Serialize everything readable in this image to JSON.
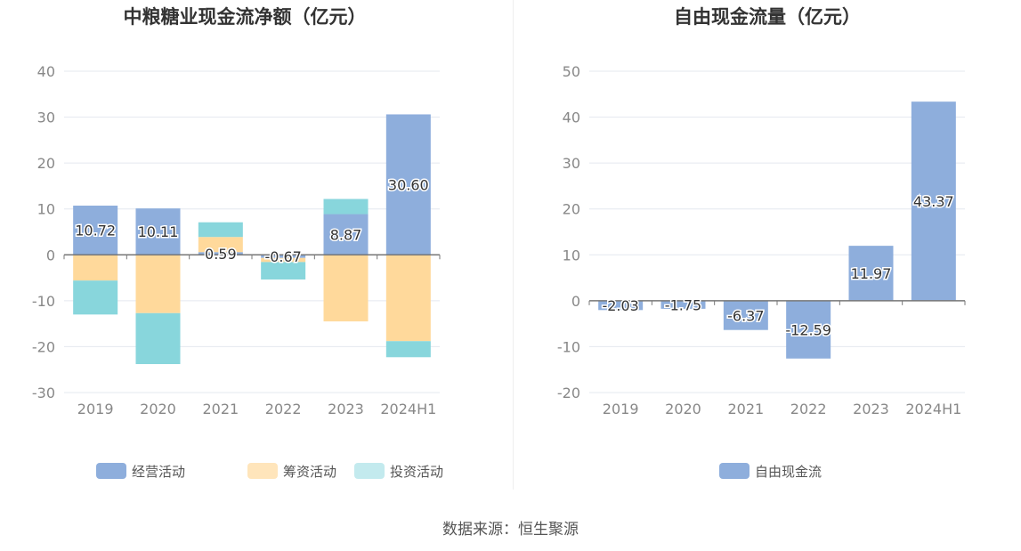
{
  "source_text": "数据来源：恒生聚源",
  "chart_data": [
    {
      "type": "bar",
      "stacked": true,
      "title": "中粮糖业现金流净额（亿元）",
      "categories": [
        "2019",
        "2020",
        "2021",
        "2022",
        "2023",
        "2024H1"
      ],
      "ylim": [
        -30,
        40
      ],
      "yticks": [
        40,
        30,
        20,
        10,
        0,
        -10,
        -20,
        -30
      ],
      "grid": true,
      "legend_position": "bottom",
      "series": [
        {
          "name": "经营活动",
          "color": "#8eaedc",
          "values": [
            10.72,
            10.11,
            0.59,
            -0.67,
            8.87,
            30.6
          ],
          "labels": [
            "10.72",
            "10.11",
            "0.59",
            "-0.67",
            "8.87",
            "30.60"
          ]
        },
        {
          "name": "筹资活动",
          "color": "#ffd99b",
          "values": [
            -5.6,
            -12.7,
            3.3,
            -0.9,
            -14.5,
            -18.8
          ]
        },
        {
          "name": "投资活动",
          "color": "#88d6dc",
          "values": [
            -7.4,
            -11.1,
            3.2,
            -3.8,
            3.3,
            -3.5
          ]
        }
      ],
      "legend_colors": [
        "#8eaedc",
        "#ffe5bb",
        "#c3eaee"
      ]
    },
    {
      "type": "bar",
      "title": "自由现金流量（亿元）",
      "categories": [
        "2019",
        "2020",
        "2021",
        "2022",
        "2023",
        "2024H1"
      ],
      "ylim": [
        -20,
        50
      ],
      "yticks": [
        50,
        40,
        30,
        20,
        10,
        0,
        -10,
        -20
      ],
      "grid": true,
      "legend_position": "bottom",
      "series": [
        {
          "name": "自由现金流",
          "color": "#8eaedc",
          "values": [
            -2.03,
            -1.75,
            -6.37,
            -12.59,
            11.97,
            43.37
          ],
          "labels": [
            "-2.03",
            "-1.75",
            "-6.37",
            "-12.59",
            "11.97",
            "43.37"
          ]
        }
      ],
      "legend_colors": [
        "#8eaedc"
      ]
    }
  ]
}
